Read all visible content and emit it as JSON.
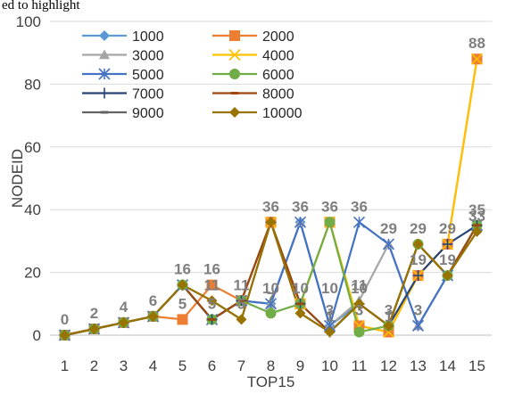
{
  "top_text": "ed to highlight",
  "chart_data": {
    "type": "line",
    "title": "",
    "xlabel": "TOP15",
    "ylabel": "NODEID",
    "ylim": [
      0,
      100
    ],
    "yticks": [
      "0",
      "20",
      "40",
      "60",
      "80",
      "100"
    ],
    "x": [
      "1",
      "2",
      "3",
      "4",
      "5",
      "6",
      "7",
      "8",
      "9",
      "10",
      "11",
      "12",
      "13",
      "14",
      "15"
    ],
    "grid": true,
    "legend": "top-left",
    "series": [
      {
        "name": "1000",
        "color": "#5b9bd5",
        "marker": "diamond",
        "values": [
          0,
          2,
          4,
          6,
          16,
          5,
          11,
          10,
          36,
          3,
          10,
          3,
          29,
          19,
          35
        ]
      },
      {
        "name": "2000",
        "color": "#ed7d31",
        "marker": "square",
        "values": [
          0,
          2,
          4,
          6,
          5,
          16,
          11,
          36,
          10,
          36,
          3,
          1,
          19,
          29,
          88
        ]
      },
      {
        "name": "3000",
        "color": "#a5a5a5",
        "marker": "triangle",
        "values": [
          0,
          2,
          4,
          6,
          16,
          5,
          11,
          10,
          36,
          3,
          11,
          29,
          3,
          19,
          35
        ]
      },
      {
        "name": "4000",
        "color": "#ffc000",
        "marker": "x",
        "values": [
          0,
          2,
          4,
          6,
          16,
          5,
          11,
          36,
          10,
          36,
          3,
          1,
          19,
          29,
          88
        ]
      },
      {
        "name": "5000",
        "color": "#4472c4",
        "marker": "star",
        "values": [
          0,
          2,
          4,
          6,
          16,
          5,
          11,
          10,
          36,
          3,
          36,
          29,
          3,
          19,
          35
        ]
      },
      {
        "name": "6000",
        "color": "#70ad47",
        "marker": "circle",
        "values": [
          0,
          2,
          4,
          6,
          16,
          5,
          11,
          7,
          10,
          36,
          1,
          3,
          29,
          19,
          35
        ]
      },
      {
        "name": "7000",
        "color": "#264478",
        "marker": "plus",
        "values": [
          0,
          2,
          4,
          6,
          16,
          5,
          11,
          36,
          10,
          1,
          10,
          3,
          19,
          29,
          35
        ]
      },
      {
        "name": "8000",
        "color": "#9e480e",
        "marker": "dash",
        "values": [
          0,
          2,
          4,
          6,
          16,
          5,
          11,
          36,
          10,
          1,
          10,
          3,
          29,
          19,
          35
        ]
      },
      {
        "name": "9000",
        "color": "#636363",
        "marker": "dash",
        "values": [
          0,
          2,
          4,
          6,
          16,
          11,
          5,
          36,
          7,
          1,
          10,
          3,
          29,
          19,
          33
        ]
      },
      {
        "name": "10000",
        "color": "#997300",
        "marker": "diamond",
        "values": [
          0,
          2,
          4,
          6,
          16,
          11,
          5,
          36,
          7,
          1,
          10,
          3,
          29,
          19,
          33
        ]
      }
    ],
    "data_labels": [
      {
        "x": "1",
        "text": "0",
        "value": 0
      },
      {
        "x": "2",
        "text": "2",
        "value": 2
      },
      {
        "x": "3",
        "text": "4",
        "value": 4
      },
      {
        "x": "4",
        "text": "6",
        "value": 6
      },
      {
        "x": "5",
        "text": "16",
        "value": 16
      },
      {
        "x": "5",
        "text": "5",
        "value": 5
      },
      {
        "x": "6",
        "text": "16",
        "value": 16
      },
      {
        "x": "6",
        "text": "11",
        "value": 11
      },
      {
        "x": "6",
        "text": "5",
        "value": 5
      },
      {
        "x": "7",
        "text": "11",
        "value": 11
      },
      {
        "x": "7",
        "text": "5",
        "value": 5
      },
      {
        "x": "8",
        "text": "36",
        "value": 36
      },
      {
        "x": "8",
        "text": "10",
        "value": 10
      },
      {
        "x": "8",
        "text": "7",
        "value": 7
      },
      {
        "x": "9",
        "text": "36",
        "value": 36
      },
      {
        "x": "9",
        "text": "10",
        "value": 10
      },
      {
        "x": "10",
        "text": "36",
        "value": 36
      },
      {
        "x": "10",
        "text": "10",
        "value": 10
      },
      {
        "x": "10",
        "text": "3",
        "value": 3
      },
      {
        "x": "10",
        "text": "1",
        "value": 1
      },
      {
        "x": "11",
        "text": "36",
        "value": 36
      },
      {
        "x": "11",
        "text": "11",
        "value": 11
      },
      {
        "x": "11",
        "text": "10",
        "value": 10
      },
      {
        "x": "11",
        "text": "3",
        "value": 3
      },
      {
        "x": "12",
        "text": "29",
        "value": 29
      },
      {
        "x": "12",
        "text": "3",
        "value": 3
      },
      {
        "x": "12",
        "text": "1",
        "value": 1
      },
      {
        "x": "13",
        "text": "29",
        "value": 29
      },
      {
        "x": "13",
        "text": "19",
        "value": 19
      },
      {
        "x": "13",
        "text": "3",
        "value": 3
      },
      {
        "x": "14",
        "text": "29",
        "value": 29
      },
      {
        "x": "14",
        "text": "19",
        "value": 19
      },
      {
        "x": "15",
        "text": "88",
        "value": 88
      },
      {
        "x": "15",
        "text": "35",
        "value": 35
      },
      {
        "x": "15",
        "text": "33",
        "value": 33
      }
    ]
  }
}
